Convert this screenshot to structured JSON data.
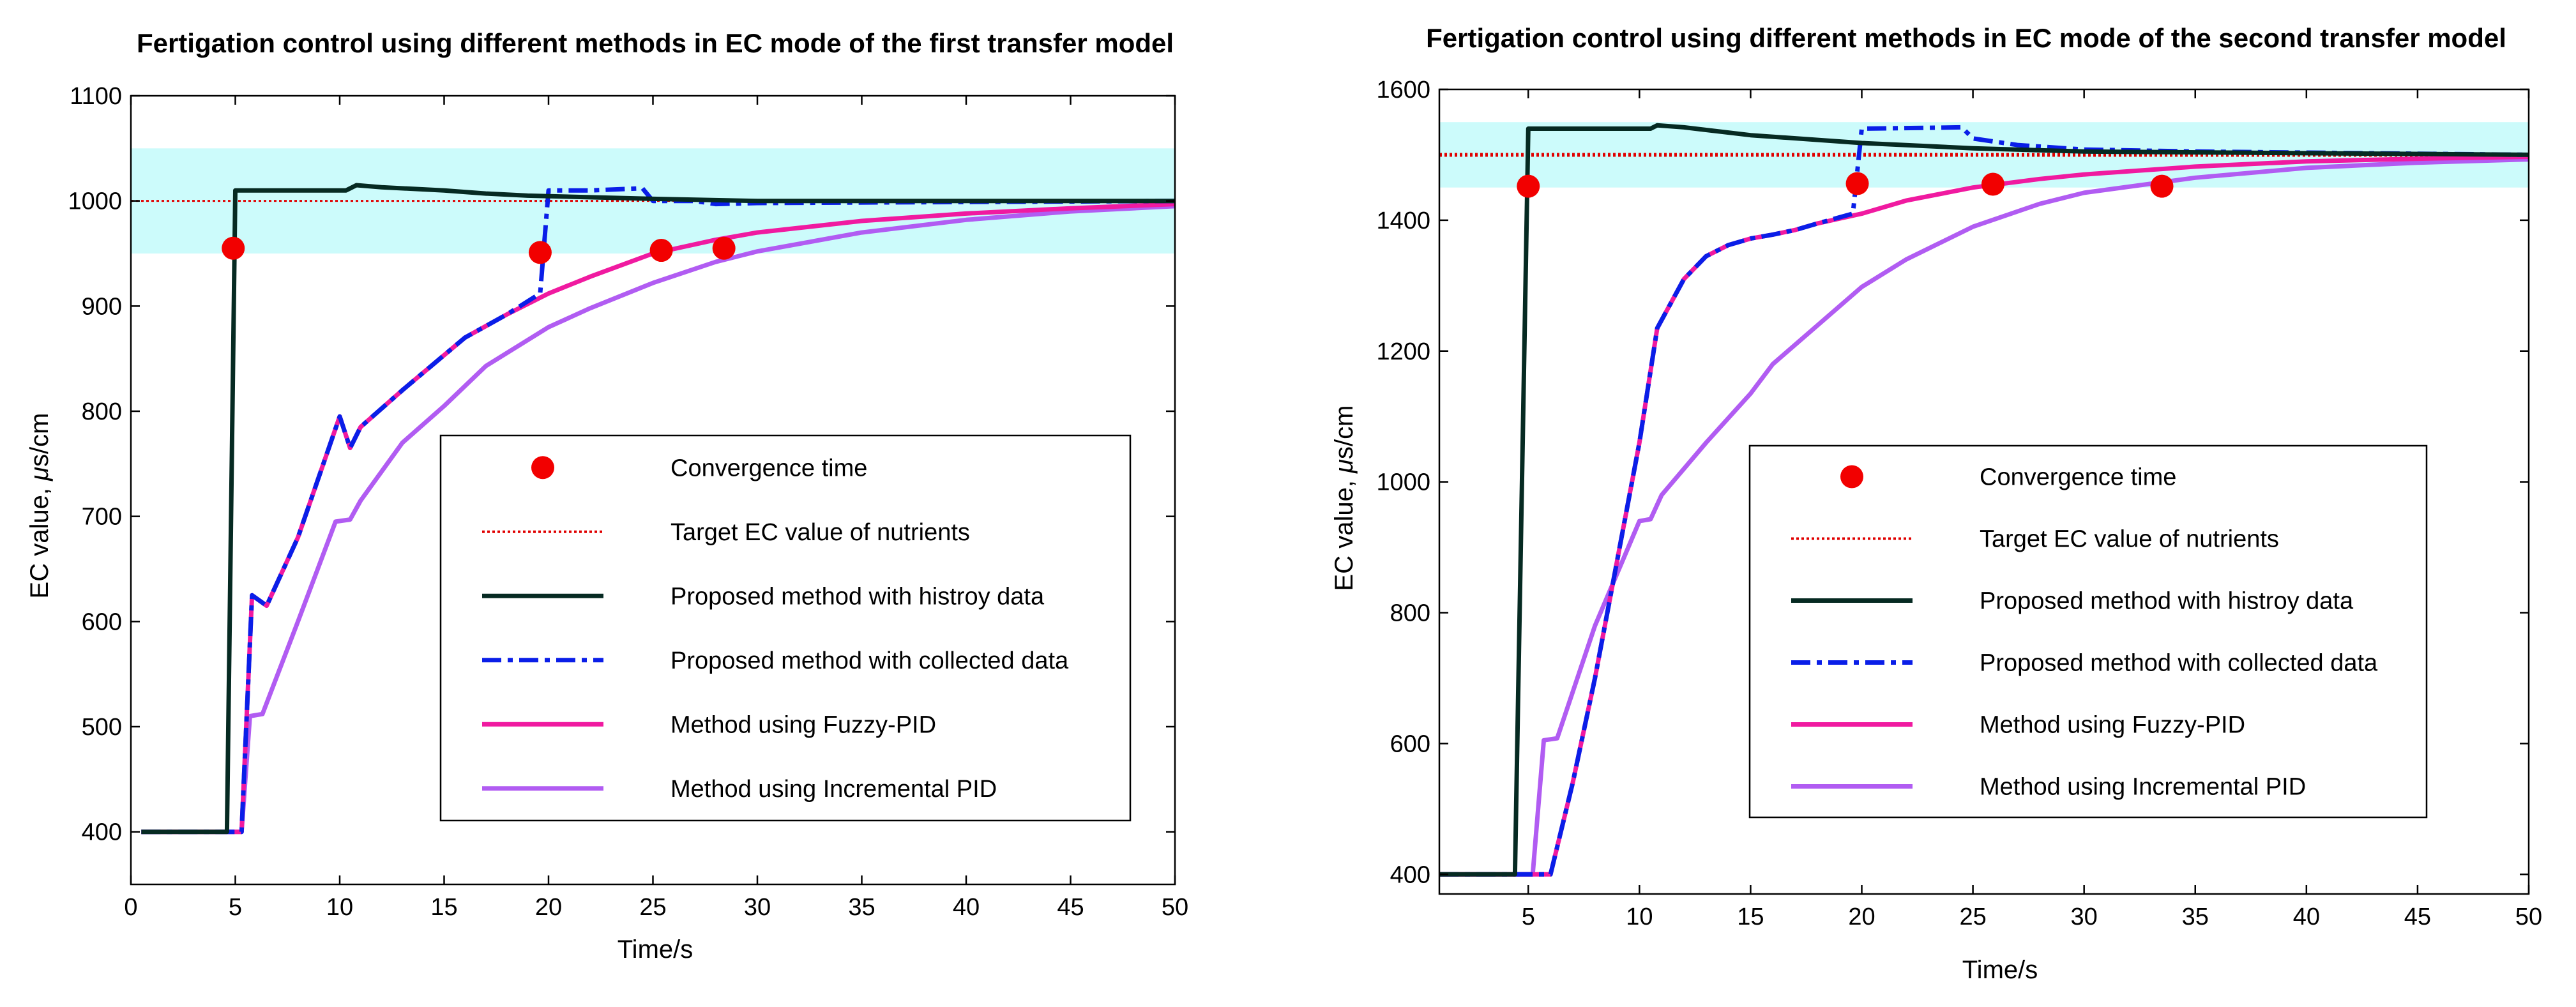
{
  "colors": {
    "band": "#ccfbfb",
    "target": "#e00000",
    "history": "#062a22",
    "collected": "#0a1ee8",
    "fuzzy": "#f01aa0",
    "incremental": "#b15cf2",
    "convergence": "#f20000"
  },
  "chart_data": [
    {
      "type": "line",
      "title": "Fertigation control using different methods in EC mode of the first transfer model",
      "xlabel": "Time/s",
      "ylabel_prefix": "EC value, ",
      "ylabel_mu": "μ",
      "ylabel_suffix": "s/cm",
      "xlim": [
        0,
        50
      ],
      "ylim": [
        350,
        1100
      ],
      "xticks": [
        0,
        5,
        10,
        15,
        20,
        25,
        30,
        35,
        40,
        45,
        50
      ],
      "yticks": [
        400,
        500,
        600,
        700,
        800,
        900,
        1000,
        1100
      ],
      "band": [
        950,
        1050
      ],
      "target": 1000,
      "legend": [
        {
          "key": "convergence",
          "label": "Convergence time"
        },
        {
          "key": "target",
          "label": "Target EC value of nutrients"
        },
        {
          "key": "history",
          "label": "Proposed method with histroy data"
        },
        {
          "key": "collected",
          "label": "Proposed method with collected data"
        },
        {
          "key": "fuzzy",
          "label": "Method using Fuzzy-PID"
        },
        {
          "key": "incremental",
          "label": "Method using Incremental PID"
        }
      ],
      "series": {
        "history": [
          [
            0.5,
            400
          ],
          [
            4.6,
            400
          ],
          [
            5,
            1010
          ],
          [
            10.3,
            1010
          ],
          [
            10.8,
            1015
          ],
          [
            12,
            1013
          ],
          [
            15,
            1010
          ],
          [
            17,
            1007
          ],
          [
            19,
            1005
          ],
          [
            25,
            1002
          ],
          [
            30,
            1000
          ],
          [
            50,
            1000
          ]
        ],
        "collected": [
          [
            0.5,
            400
          ],
          [
            5.3,
            400
          ],
          [
            5.8,
            625
          ],
          [
            6.5,
            615
          ],
          [
            8,
            680
          ],
          [
            10,
            795
          ],
          [
            10.5,
            765
          ],
          [
            11,
            785
          ],
          [
            13,
            820
          ],
          [
            14.5,
            845
          ],
          [
            16,
            870
          ],
          [
            18,
            892
          ],
          [
            19.6,
            912
          ],
          [
            20,
            1010
          ],
          [
            22,
            1010
          ],
          [
            24.5,
            1012
          ],
          [
            25,
            1000
          ],
          [
            27,
            1000
          ],
          [
            28,
            997
          ],
          [
            30,
            998
          ],
          [
            50,
            1000
          ]
        ],
        "fuzzy": [
          [
            0.5,
            400
          ],
          [
            5.3,
            400
          ],
          [
            5.8,
            625
          ],
          [
            6.5,
            615
          ],
          [
            8,
            680
          ],
          [
            10,
            795
          ],
          [
            10.5,
            765
          ],
          [
            11,
            785
          ],
          [
            13,
            820
          ],
          [
            14.5,
            845
          ],
          [
            16,
            870
          ],
          [
            18,
            892
          ],
          [
            20,
            912
          ],
          [
            22,
            928
          ],
          [
            25,
            950
          ],
          [
            28,
            963
          ],
          [
            30,
            970
          ],
          [
            35,
            981
          ],
          [
            40,
            988
          ],
          [
            45,
            993
          ],
          [
            50,
            997
          ]
        ],
        "incremental": [
          [
            0.5,
            400
          ],
          [
            5.3,
            400
          ],
          [
            5.7,
            510
          ],
          [
            6.3,
            512
          ],
          [
            8,
            600
          ],
          [
            9.8,
            695
          ],
          [
            10.5,
            697
          ],
          [
            11,
            715
          ],
          [
            13,
            770
          ],
          [
            15,
            805
          ],
          [
            17,
            843
          ],
          [
            20,
            880
          ],
          [
            22,
            898
          ],
          [
            25,
            922
          ],
          [
            28,
            942
          ],
          [
            30,
            952
          ],
          [
            35,
            970
          ],
          [
            40,
            982
          ],
          [
            45,
            990
          ],
          [
            50,
            995
          ]
        ]
      },
      "convergence_points": [
        [
          4.9,
          955
        ],
        [
          19.6,
          951
        ],
        [
          25.4,
          953
        ],
        [
          28.4,
          955
        ]
      ]
    },
    {
      "type": "line",
      "title": "Fertigation control using different methods in EC mode of the second transfer model",
      "xlabel": "Time/s",
      "ylabel_prefix": "EC value, ",
      "ylabel_mu": "μ",
      "ylabel_suffix": "s/cm",
      "xlim": [
        1,
        50
      ],
      "ylim": [
        370,
        1600
      ],
      "xticks": [
        5,
        10,
        15,
        20,
        25,
        30,
        35,
        40,
        45,
        50
      ],
      "yticks": [
        400,
        600,
        800,
        1000,
        1200,
        1400,
        1600
      ],
      "band": [
        1450,
        1550
      ],
      "target": 1500,
      "legend": [
        {
          "key": "convergence",
          "label": "Convergence time"
        },
        {
          "key": "target",
          "label": "Target EC value of nutrients"
        },
        {
          "key": "history",
          "label": "Proposed method with histroy data"
        },
        {
          "key": "collected",
          "label": "Proposed method with collected data"
        },
        {
          "key": "fuzzy",
          "label": "Method using Fuzzy-PID"
        },
        {
          "key": "incremental",
          "label": "Method using Incremental PID"
        }
      ],
      "series": {
        "history": [
          [
            1,
            400
          ],
          [
            4.4,
            400
          ],
          [
            5,
            1540
          ],
          [
            10.5,
            1540
          ],
          [
            10.8,
            1545
          ],
          [
            12,
            1542
          ],
          [
            15,
            1530
          ],
          [
            20,
            1518
          ],
          [
            25,
            1510
          ],
          [
            30,
            1505
          ],
          [
            50,
            1500
          ]
        ],
        "collected": [
          [
            1,
            400
          ],
          [
            6,
            400
          ],
          [
            7,
            540
          ],
          [
            8,
            700
          ],
          [
            9,
            880
          ],
          [
            10,
            1060
          ],
          [
            10.8,
            1235
          ],
          [
            12,
            1310
          ],
          [
            13,
            1345
          ],
          [
            14,
            1362
          ],
          [
            15,
            1372
          ],
          [
            16,
            1378
          ],
          [
            17,
            1385
          ],
          [
            18,
            1395
          ],
          [
            19.6,
            1410
          ],
          [
            20,
            1540
          ],
          [
            24.5,
            1542
          ],
          [
            25,
            1525
          ],
          [
            27,
            1515
          ],
          [
            30,
            1508
          ],
          [
            35,
            1505
          ],
          [
            50,
            1500
          ]
        ],
        "fuzzy": [
          [
            1,
            400
          ],
          [
            6,
            400
          ],
          [
            7,
            540
          ],
          [
            8,
            700
          ],
          [
            9,
            880
          ],
          [
            10,
            1060
          ],
          [
            10.8,
            1235
          ],
          [
            12,
            1310
          ],
          [
            13,
            1345
          ],
          [
            14,
            1362
          ],
          [
            15,
            1372
          ],
          [
            16,
            1378
          ],
          [
            17,
            1385
          ],
          [
            18,
            1395
          ],
          [
            20,
            1410
          ],
          [
            22,
            1430
          ],
          [
            25,
            1450
          ],
          [
            28,
            1463
          ],
          [
            30,
            1470
          ],
          [
            35,
            1482
          ],
          [
            40,
            1490
          ],
          [
            45,
            1494
          ],
          [
            50,
            1497
          ]
        ],
        "incremental": [
          [
            1,
            400
          ],
          [
            5.2,
            400
          ],
          [
            5.7,
            605
          ],
          [
            6.3,
            608
          ],
          [
            8,
            780
          ],
          [
            10,
            940
          ],
          [
            10.5,
            943
          ],
          [
            11,
            980
          ],
          [
            13,
            1060
          ],
          [
            15,
            1135
          ],
          [
            16,
            1180
          ],
          [
            20,
            1298
          ],
          [
            22,
            1340
          ],
          [
            25,
            1390
          ],
          [
            28,
            1425
          ],
          [
            30,
            1442
          ],
          [
            35,
            1465
          ],
          [
            40,
            1480
          ],
          [
            45,
            1488
          ],
          [
            50,
            1493
          ]
        ]
      },
      "convergence_points": [
        [
          5,
          1452
        ],
        [
          19.8,
          1456
        ],
        [
          25.9,
          1455
        ],
        [
          33.5,
          1452
        ]
      ]
    }
  ]
}
